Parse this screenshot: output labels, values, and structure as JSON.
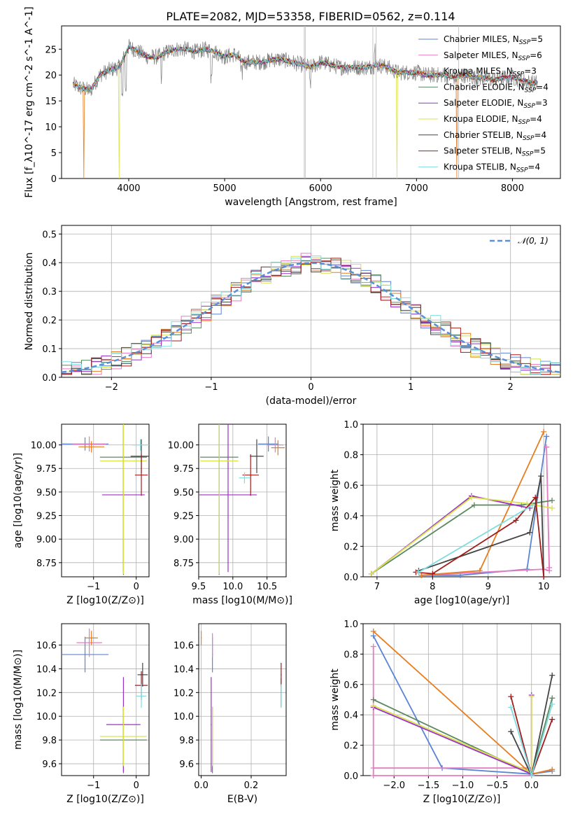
{
  "title": "PLATE=2082, MJD=53358, FIBERID=0562, z=0.114",
  "series": [
    {
      "name": "Chabrier MILES",
      "nssp": 5,
      "color": "#5b84d6"
    },
    {
      "name": "Salpeter MILES",
      "nssp": 6,
      "color": "#e57bc0"
    },
    {
      "name": "Kroupa MILES",
      "nssp": 3,
      "color": "#e87d1e"
    },
    {
      "name": "Chabrier ELODIE",
      "nssp": 4,
      "color": "#5a8a5e"
    },
    {
      "name": "Salpeter ELODIE",
      "nssp": 3,
      "color": "#9b30c8"
    },
    {
      "name": "Kroupa ELODIE",
      "nssp": 4,
      "color": "#d8e04a"
    },
    {
      "name": "Chabrier STELIB",
      "nssp": 4,
      "color": "#444444"
    },
    {
      "name": "Salpeter STELIB",
      "nssp": 5,
      "color": "#a11c1c"
    },
    {
      "name": "Kroupa STELIB",
      "nssp": 4,
      "color": "#7fdde0"
    }
  ],
  "chart_data": [
    {
      "type": "line",
      "id": "spectrum",
      "xlabel": "wavelength [Angstrom, rest frame]",
      "ylabel": "Flux [f_λ10^-17 erg cm^-2 s^-1 A^-1]",
      "xlim": [
        3300,
        8500
      ],
      "ylim": [
        0,
        29.5
      ],
      "xticks": [
        4000,
        5000,
        6000,
        7000,
        8000
      ],
      "yticks": [
        0,
        5,
        10,
        15,
        20,
        25
      ],
      "data_color": "#808080",
      "data_x": [
        3420,
        3500,
        3600,
        3700,
        3800,
        3900,
        4000,
        4100,
        4200,
        4300,
        4400,
        4500,
        4600,
        4700,
        4800,
        4900,
        5000,
        5100,
        5200,
        5300,
        5400,
        5500,
        5600,
        5700,
        5800,
        5900,
        6000,
        6100,
        6200,
        6300,
        6400,
        6500,
        6600,
        6700,
        6800,
        6900,
        7000,
        7100,
        7200,
        7300,
        7400,
        7500,
        7600,
        7700,
        7800,
        7900,
        8000,
        8100,
        8200,
        8260
      ],
      "data_y": [
        18.2,
        17.5,
        17.0,
        20.0,
        21.0,
        21.5,
        25.5,
        24.5,
        23.5,
        23.5,
        24.5,
        25.0,
        25.0,
        24.5,
        25.0,
        24.5,
        23.5,
        24.0,
        22.5,
        22.5,
        22.5,
        23.0,
        23.0,
        22.5,
        22.0,
        21.5,
        22.5,
        22.0,
        21.5,
        21.5,
        21.5,
        21.5,
        22.0,
        21.5,
        20.5,
        20.5,
        20.5,
        20.0,
        20.0,
        20.0,
        19.5,
        20.0,
        19.5,
        19.5,
        19.0,
        19.5,
        19.5,
        19.0,
        18.5,
        18.5
      ],
      "model_drops": [
        {
          "series": "Kroupa MILES",
          "x": 3530
        },
        {
          "series": "Kroupa ELODIE",
          "x": 3900
        },
        {
          "series": "Kroupa ELODIE",
          "x": 6795
        },
        {
          "series": "Kroupa MILES",
          "x": 7420
        }
      ]
    },
    {
      "type": "step",
      "id": "residuals",
      "xlabel": "(data-model)/error",
      "ylabel": "Normed distribution",
      "xlim": [
        -2.5,
        2.5
      ],
      "ylim": [
        0,
        0.53
      ],
      "xticks": [
        -2,
        -1,
        0,
        1,
        2
      ],
      "yticks": [
        0.0,
        0.1,
        0.2,
        0.3,
        0.4,
        0.5
      ],
      "bin_width": 0.1,
      "reference_label": "𝒩(0, 1)",
      "reference_color": "#5b8fd6"
    },
    {
      "type": "errorbar",
      "id": "z-age",
      "xlabel": "Z [log10(Z/Z⊙)]",
      "ylabel": "age [log10(age/yr)]",
      "xlim": [
        -1.75,
        0.3
      ],
      "ylim": [
        8.6,
        10.22
      ],
      "xticks": [
        -1,
        0
      ],
      "yticks": [
        8.75,
        9.0,
        9.25,
        9.5,
        9.75,
        10.0
      ],
      "points": [
        {
          "series": "Chabrier MILES",
          "x": -1.2,
          "xerr": 0.55,
          "y": 10.01,
          "yerr": 0.07
        },
        {
          "series": "Salpeter MILES",
          "x": -1.1,
          "xerr": 0.4,
          "y": 10.01,
          "yerr": 0.08
        },
        {
          "series": "Kroupa MILES",
          "x": -1.05,
          "xerr": 0.3,
          "y": 9.98,
          "yerr": 0.06
        },
        {
          "series": "Chabrier ELODIE",
          "x": -0.3,
          "xerr": 0.55,
          "y": 9.87,
          "yerr": 1.25
        },
        {
          "series": "Salpeter ELODIE",
          "x": -0.3,
          "xerr": 0.5,
          "y": 9.47,
          "yerr": 0.82
        },
        {
          "series": "Kroupa ELODIE",
          "x": -0.3,
          "xerr": 0.55,
          "y": 9.83,
          "yerr": 1.2
        },
        {
          "series": "Chabrier STELIB",
          "x": 0.12,
          "xerr": 0.25,
          "y": 9.88,
          "yerr": 0.18
        },
        {
          "series": "Salpeter STELIB",
          "x": 0.12,
          "xerr": 0.15,
          "y": 9.68,
          "yerr": 0.22
        },
        {
          "series": "Kroupa STELIB",
          "x": 0.1,
          "xerr": 0.2,
          "y": 10.0,
          "yerr": 0.06
        }
      ]
    },
    {
      "type": "errorbar",
      "id": "mass-age",
      "xlabel": "mass [log10(M/M⊙)]",
      "ylabel": "",
      "xlim": [
        9.5,
        10.78
      ],
      "ylim": [
        8.6,
        10.22
      ],
      "xticks": [
        9.5,
        10.0,
        10.5
      ],
      "yticks": [
        8.75,
        9.0,
        9.25,
        9.5,
        9.75,
        10.0
      ],
      "points": [
        {
          "series": "Chabrier MILES",
          "x": 10.52,
          "xerr": 0.15,
          "y": 10.01,
          "yerr": 0.08
        },
        {
          "series": "Salpeter MILES",
          "x": 10.62,
          "xerr": 0.12,
          "y": 10.0,
          "yerr": 0.08
        },
        {
          "series": "Kroupa MILES",
          "x": 10.66,
          "xerr": 0.1,
          "y": 9.97,
          "yerr": 0.08
        },
        {
          "series": "Chabrier ELODIE",
          "x": 9.8,
          "xerr": 0.28,
          "y": 9.87,
          "yerr": 1.25
        },
        {
          "series": "Salpeter ELODIE",
          "x": 9.93,
          "xerr": 0.42,
          "y": 9.47,
          "yerr": 0.82
        },
        {
          "series": "Kroupa ELODIE",
          "x": 9.8,
          "xerr": 0.28,
          "y": 9.83,
          "yerr": 1.2
        },
        {
          "series": "Chabrier STELIB",
          "x": 10.35,
          "xerr": 0.1,
          "y": 9.88,
          "yerr": 0.18
        },
        {
          "series": "Salpeter STELIB",
          "x": 10.26,
          "xerr": 0.12,
          "y": 9.68,
          "yerr": 0.22
        },
        {
          "series": "Kroupa STELIB",
          "x": 10.17,
          "xerr": 0.08,
          "y": 9.65,
          "yerr": 0.06
        }
      ]
    },
    {
      "type": "line",
      "id": "age-weight",
      "xlabel": "age [log10(age/yr)]",
      "ylabel": "mass weight",
      "xlim": [
        6.75,
        10.3
      ],
      "ylim": [
        0,
        1.0
      ],
      "xticks": [
        7,
        8,
        9,
        10
      ],
      "yticks": [
        0.0,
        0.2,
        0.4,
        0.6,
        0.8,
        1.0
      ],
      "lines": [
        {
          "series": "Chabrier MILES",
          "x": [
            7.8,
            8.5,
            9.7,
            10.05
          ],
          "y": [
            0.01,
            0.01,
            0.05,
            0.92
          ]
        },
        {
          "series": "Salpeter MILES",
          "x": [
            7.8,
            10.0,
            10.1,
            10.05,
            10.1
          ],
          "y": [
            0.01,
            0.05,
            0.04,
            0.85,
            0.06
          ]
        },
        {
          "series": "Kroupa MILES",
          "x": [
            7.8,
            8.85,
            10.0
          ],
          "y": [
            0.01,
            0.04,
            0.95
          ]
        },
        {
          "series": "Chabrier ELODIE",
          "x": [
            6.9,
            8.75,
            9.6,
            10.15
          ],
          "y": [
            0.02,
            0.47,
            0.47,
            0.5
          ]
        },
        {
          "series": "Salpeter ELODIE",
          "x": [
            6.9,
            8.7,
            9.75
          ],
          "y": [
            0.02,
            0.53,
            0.45
          ]
        },
        {
          "series": "Kroupa ELODIE",
          "x": [
            6.9,
            8.7,
            9.7,
            10.15
          ],
          "y": [
            0.02,
            0.52,
            0.48,
            0.45
          ]
        },
        {
          "series": "Chabrier STELIB",
          "x": [
            7.75,
            9.75,
            9.95,
            10.0
          ],
          "y": [
            0.04,
            0.29,
            0.66,
            0.0
          ]
        },
        {
          "series": "Salpeter STELIB",
          "x": [
            7.7,
            8.0,
            9.5,
            9.85,
            10.0
          ],
          "y": [
            0.03,
            0.02,
            0.37,
            0.52,
            0.0
          ]
        },
        {
          "series": "Kroupa STELIB",
          "x": [
            7.75,
            9.8
          ],
          "y": [
            0.03,
            0.47
          ]
        }
      ]
    },
    {
      "type": "errorbar",
      "id": "z-mass",
      "xlabel": "Z [log10(Z/Z⊙)]",
      "ylabel": "mass [log10(M/M⊙)]",
      "xlim": [
        -1.75,
        0.3
      ],
      "ylim": [
        9.5,
        10.78
      ],
      "xticks": [
        -1,
        0
      ],
      "yticks": [
        9.6,
        9.8,
        10.0,
        10.2,
        10.4,
        10.6
      ],
      "points": [
        {
          "series": "Chabrier MILES",
          "x": -1.2,
          "xerr": 0.55,
          "y": 10.52,
          "yerr": 0.15
        },
        {
          "series": "Salpeter MILES",
          "x": -1.1,
          "xerr": 0.3,
          "y": 10.62,
          "yerr": 0.12
        },
        {
          "series": "Kroupa MILES",
          "x": -1.05,
          "xerr": 0.15,
          "y": 10.66,
          "yerr": 0.06
        },
        {
          "series": "Chabrier ELODIE",
          "x": -0.3,
          "xerr": 0.55,
          "y": 9.8,
          "yerr": 0.28
        },
        {
          "series": "Salpeter ELODIE",
          "x": -0.3,
          "xerr": 0.4,
          "y": 9.93,
          "yerr": 0.4
        },
        {
          "series": "Kroupa ELODIE",
          "x": -0.3,
          "xerr": 0.55,
          "y": 9.83,
          "yerr": 0.25
        },
        {
          "series": "Chabrier STELIB",
          "x": 0.15,
          "xerr": 0.12,
          "y": 10.35,
          "yerr": 0.1
        },
        {
          "series": "Salpeter STELIB",
          "x": 0.12,
          "xerr": 0.15,
          "y": 10.26,
          "yerr": 0.12
        },
        {
          "series": "Kroupa STELIB",
          "x": 0.12,
          "xerr": 0.12,
          "y": 10.17,
          "yerr": 0.1
        }
      ]
    },
    {
      "type": "errorbar",
      "id": "ebv-mass",
      "xlabel": "E(B-V)",
      "ylabel": "",
      "xlim": [
        -0.01,
        0.34
      ],
      "ylim": [
        9.5,
        10.78
      ],
      "xticks": [
        0.0,
        0.2
      ],
      "yticks": [
        9.6,
        9.8,
        10.0,
        10.2,
        10.4,
        10.6
      ],
      "points": [
        {
          "series": "Chabrier MILES",
          "x": 0.045,
          "xerr": 0.002,
          "y": 10.52,
          "yerr": 0.15
        },
        {
          "series": "Salpeter MILES",
          "x": 0.045,
          "xerr": 0.002,
          "y": 10.6,
          "yerr": 0.1
        },
        {
          "series": "Kroupa MILES",
          "x": 0.0,
          "xerr": 0.002,
          "y": 10.66,
          "yerr": 0.06
        },
        {
          "series": "Chabrier ELODIE",
          "x": 0.045,
          "xerr": 0.002,
          "y": 9.8,
          "yerr": 0.28
        },
        {
          "series": "Salpeter ELODIE",
          "x": 0.04,
          "xerr": 0.002,
          "y": 9.93,
          "yerr": 0.4
        },
        {
          "series": "Kroupa ELODIE",
          "x": 0.045,
          "xerr": 0.002,
          "y": 9.83,
          "yerr": 0.25
        },
        {
          "series": "Chabrier STELIB",
          "x": 0.32,
          "xerr": 0.002,
          "y": 10.2,
          "yerr": 0.12
        },
        {
          "series": "Salpeter STELIB",
          "x": 0.32,
          "xerr": 0.002,
          "y": 10.35,
          "yerr": 0.1
        },
        {
          "series": "Kroupa STELIB",
          "x": 0.32,
          "xerr": 0.002,
          "y": 10.17,
          "yerr": 0.1
        }
      ]
    },
    {
      "type": "line",
      "id": "z-weight",
      "xlabel": "Z [log10(Z/Z⊙)]",
      "ylabel": "mass weight",
      "xlim": [
        -2.45,
        0.42
      ],
      "ylim": [
        0,
        1.0
      ],
      "xticks": [
        -2.0,
        -1.5,
        -1.0,
        -0.5,
        0.0
      ],
      "yticks": [
        0.0,
        0.2,
        0.4,
        0.6,
        0.8,
        1.0
      ],
      "lines": [
        {
          "series": "Chabrier MILES",
          "x": [
            -2.3,
            -1.3,
            0.0,
            0.3
          ],
          "y": [
            0.92,
            0.05,
            0.01,
            0.03
          ]
        },
        {
          "series": "Salpeter MILES",
          "x": [
            -2.3,
            -2.3,
            0.0,
            0.0,
            -2.3
          ],
          "y": [
            0.85,
            0.0,
            0.0,
            0.05,
            0.05
          ]
        },
        {
          "series": "Kroupa MILES",
          "x": [
            -2.3,
            0.0,
            0.3
          ],
          "y": [
            0.95,
            0.01,
            0.04
          ]
        },
        {
          "series": "Chabrier ELODIE",
          "x": [
            -2.3,
            0.0,
            0.3
          ],
          "y": [
            0.5,
            0.01,
            0.51
          ]
        },
        {
          "series": "Salpeter ELODIE",
          "x": [
            -2.3,
            0.0,
            0.0
          ],
          "y": [
            0.45,
            0.01,
            0.53
          ]
        },
        {
          "series": "Kroupa ELODIE",
          "x": [
            -2.3,
            0.0,
            0.0
          ],
          "y": [
            0.46,
            0.02,
            0.52
          ]
        },
        {
          "series": "Chabrier STELIB",
          "x": [
            -0.3,
            0.0,
            0.3
          ],
          "y": [
            0.29,
            0.0,
            0.66
          ]
        },
        {
          "series": "Salpeter STELIB",
          "x": [
            -0.3,
            0.0,
            0.3
          ],
          "y": [
            0.52,
            0.0,
            0.37
          ]
        },
        {
          "series": "Kroupa STELIB",
          "x": [
            -0.3,
            0.0,
            0.3
          ],
          "y": [
            0.45,
            0.0,
            0.47
          ]
        }
      ]
    }
  ]
}
